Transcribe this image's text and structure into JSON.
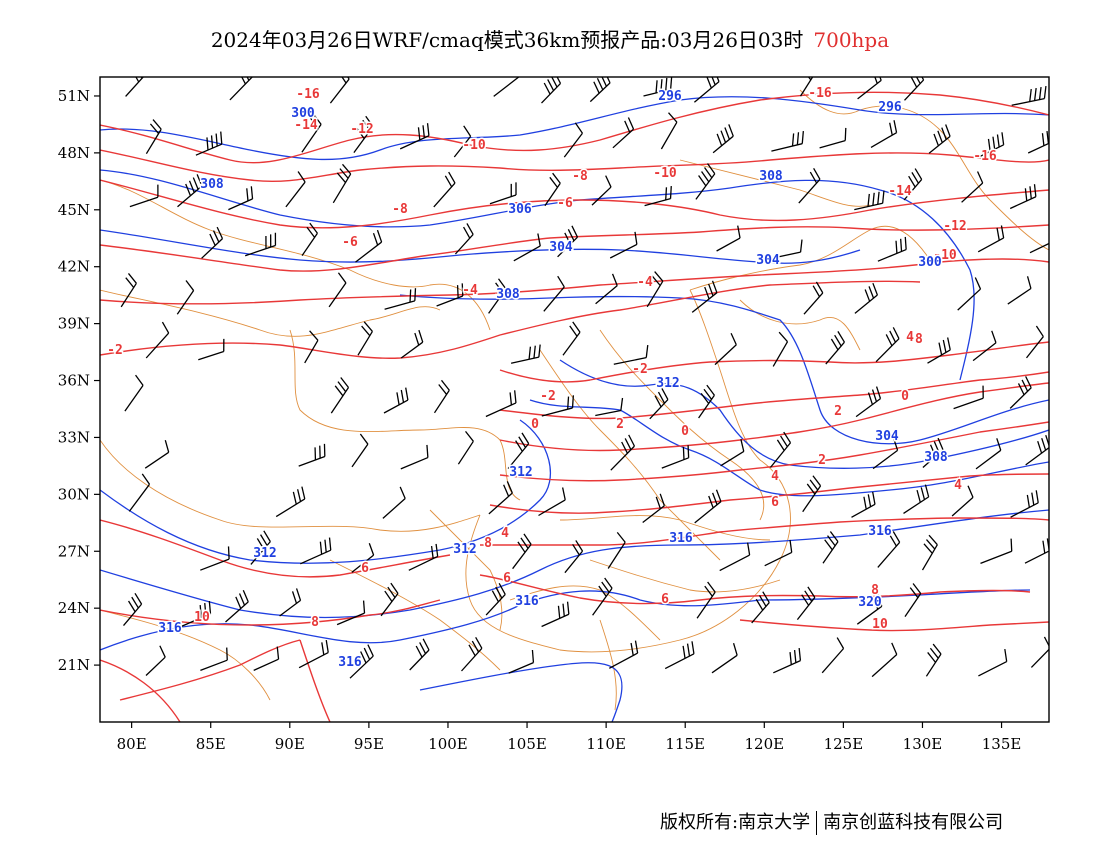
{
  "title": "2024年03月26日WRF/cmaq模式36km预报产品:03月26日03时",
  "level": "700hpa",
  "copyright": {
    "owner": "版权所有:南京大学",
    "partner": "南京创蓝科技有限公司"
  },
  "map": {
    "lon_range": [
      78,
      138
    ],
    "lat_range": [
      18,
      52
    ],
    "lon_ticks": [
      "80E",
      "85E",
      "90E",
      "95E",
      "100E",
      "105E",
      "110E",
      "115E",
      "120E",
      "125E",
      "130E",
      "135E"
    ],
    "lat_ticks": [
      "51N",
      "48N",
      "45N",
      "42N",
      "39N",
      "36N",
      "33N",
      "30N",
      "27N",
      "24N",
      "21N"
    ],
    "colors": {
      "temperature": "#e83838",
      "height": "#2040e0",
      "boundary": "#e09040",
      "wind": "#000000"
    },
    "temperature_labels": [
      "-16",
      "-16",
      "-16",
      "-14",
      "-14",
      "-12",
      "-12",
      "-10",
      "-10",
      "-10",
      "-8",
      "-8",
      "-8",
      "-6",
      "-6",
      "-4",
      "-4",
      "-2",
      "-2",
      "-2",
      "0",
      "0",
      "0",
      "2",
      "2",
      "2",
      "4",
      "4",
      "4",
      "4",
      "6",
      "6",
      "6",
      "6",
      "8",
      "8",
      "8",
      "10",
      "10"
    ],
    "height_labels": [
      "300",
      "296",
      "296",
      "308",
      "308",
      "306",
      "304",
      "304",
      "308",
      "300",
      "312",
      "304",
      "308",
      "312",
      "312",
      "316",
      "316",
      "312",
      "316",
      "316",
      "320",
      "316"
    ]
  }
}
